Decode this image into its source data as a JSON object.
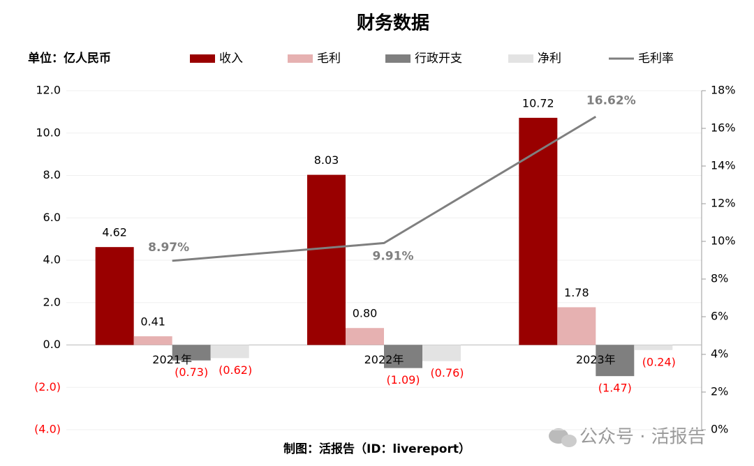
{
  "chart_data": {
    "type": "bar",
    "title": "财务数据",
    "unit_label": "单位：亿人民币",
    "source": "制图：活报告（ID：livereport）",
    "watermark": "公众号 · 活报告",
    "categories": [
      "2021年",
      "2022年",
      "2023年"
    ],
    "series": [
      {
        "name": "收入",
        "type": "bar",
        "color": "#990000",
        "values": [
          4.62,
          8.03,
          10.72
        ],
        "value_labels": [
          "4.62",
          "8.03",
          "10.72"
        ]
      },
      {
        "name": "毛利",
        "type": "bar",
        "color": "#e6b1b1",
        "values": [
          0.41,
          0.8,
          1.78
        ],
        "value_labels": [
          "0.41",
          "0.80",
          "1.78"
        ]
      },
      {
        "name": "行政开支",
        "type": "bar",
        "color": "#7f7f7f",
        "values": [
          -0.73,
          -1.09,
          -1.47
        ],
        "value_labels": [
          "(0.73)",
          "(1.09)",
          "(1.47)"
        ]
      },
      {
        "name": "净利",
        "type": "bar",
        "color": "#e3e3e3",
        "values": [
          -0.62,
          -0.76,
          -0.24
        ],
        "value_labels": [
          "(0.62)",
          "(0.76)",
          "(0.24)"
        ]
      },
      {
        "name": "毛利率",
        "type": "line",
        "axis": "y2",
        "color": "#7f7f7f",
        "values": [
          8.97,
          9.91,
          16.62
        ],
        "value_labels": [
          "8.97%",
          "9.91%",
          "16.62%"
        ]
      }
    ],
    "ylim": [
      -4,
      12
    ],
    "yticks": [
      {
        "value": -4,
        "label": "(4.0)"
      },
      {
        "value": -2,
        "label": "(2.0)"
      },
      {
        "value": 0,
        "label": "0.0"
      },
      {
        "value": 2,
        "label": "2.0"
      },
      {
        "value": 4,
        "label": "4.0"
      },
      {
        "value": 6,
        "label": "6.0"
      },
      {
        "value": 8,
        "label": "8.0"
      },
      {
        "value": 10,
        "label": "10.0"
      },
      {
        "value": 12,
        "label": "12.0"
      }
    ],
    "y2lim": [
      0,
      18
    ],
    "y2ticks": [
      {
        "value": 0,
        "label": "0%"
      },
      {
        "value": 2,
        "label": "2%"
      },
      {
        "value": 4,
        "label": "4%"
      },
      {
        "value": 6,
        "label": "6%"
      },
      {
        "value": 8,
        "label": "8%"
      },
      {
        "value": 10,
        "label": "10%"
      },
      {
        "value": 12,
        "label": "12%"
      },
      {
        "value": 14,
        "label": "14%"
      },
      {
        "value": 16,
        "label": "16%"
      },
      {
        "value": 18,
        "label": "18%"
      }
    ],
    "grid": true,
    "negative_label_color": "#ff0000"
  }
}
